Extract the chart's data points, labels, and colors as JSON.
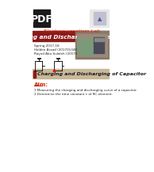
{
  "pdf_label": "PDF",
  "subtitle": "Electromagnetism Lab",
  "main_title": "Charging and Discharging of Capacitor",
  "main_title_bg": "#8B1A1A",
  "info_line1": "Spring 2017-18",
  "info_line2": "Halden Assad (201701348)",
  "info_line3": "Rayed Abu Sulaleh (201701871)",
  "section_title": "Charging and Discharging of Capacitor",
  "section_bg": "#C8B89A",
  "aim_title": "Aim:",
  "aim_line1": "1.Measuring the charging and discharging curve of a capacitor.",
  "aim_line2": "2.Determine the time constant τ of RC-element.",
  "bg_color": "#FFFFFF",
  "pdf_bg": "#1a1a1a",
  "pdf_text_color": "#FFFFFF",
  "title_text_color": "#FFFFFF",
  "subtitle_color": "#CC2200",
  "section_marker_color": "#8B1A1A",
  "aim_title_color": "#CC2200",
  "body_text_color": "#222222"
}
